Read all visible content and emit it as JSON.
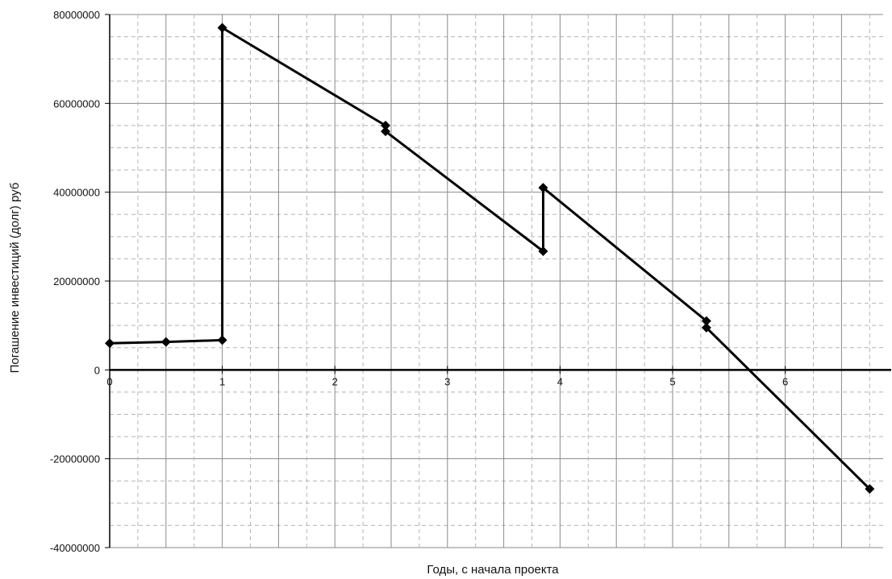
{
  "chart_data": {
    "type": "line",
    "title": "",
    "xlabel": "Годы, с начала проекта",
    "ylabel": "Погашение инвестиций (долг) руб",
    "xlim": [
      0,
      6.8
    ],
    "ylim": [
      -40000000,
      80000000
    ],
    "x_ticks": [
      0,
      1,
      2,
      3,
      4,
      5,
      6
    ],
    "x_tick_labels": [
      "0",
      "1",
      "2",
      "3",
      "4",
      "5",
      "6"
    ],
    "y_ticks": [
      80000000,
      60000000,
      40000000,
      20000000,
      0,
      -20000000,
      -40000000
    ],
    "y_tick_labels": [
      "80000000",
      "60000000",
      "40000000",
      "20000000",
      "0",
      "-20000000",
      "-40000000"
    ],
    "grid": true,
    "legend": "none",
    "series": [
      {
        "color": "#000000",
        "marker": "diamond",
        "points": [
          {
            "x": 0,
            "y": 6000000
          },
          {
            "x": 0.5,
            "y": 6300000
          },
          {
            "x": 1,
            "y": 6700000
          },
          {
            "x": 1,
            "y": 77000000
          },
          {
            "x": 2.45,
            "y": 55000000
          },
          {
            "x": 2.45,
            "y": 53700000
          },
          {
            "x": 3.85,
            "y": 26700000
          },
          {
            "x": 3.85,
            "y": 41000000
          },
          {
            "x": 5.3,
            "y": 11000000
          },
          {
            "x": 5.3,
            "y": 9500000
          },
          {
            "x": 6.75,
            "y": -26800000
          }
        ]
      }
    ]
  }
}
